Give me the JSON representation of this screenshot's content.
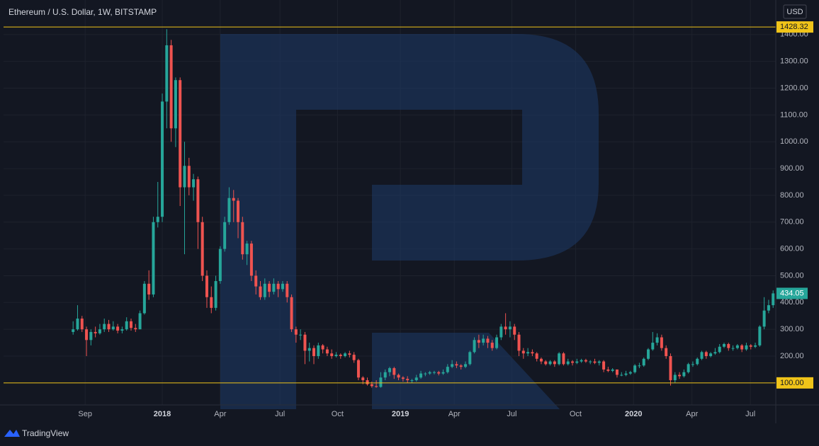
{
  "chart_data": {
    "type": "candlestick",
    "title": "Ethereum / U.S. Dollar, 1W, BITSTAMP",
    "currency": "USD",
    "up_color": "#26a69a",
    "down_color": "#ef5350",
    "open": [
      290,
      300,
      340,
      300,
      260,
      290,
      285,
      300,
      320,
      300,
      310,
      295,
      300,
      330,
      305,
      300,
      360,
      470,
      430,
      700,
      720,
      1150,
      1360,
      1050,
      1230,
      830,
      910,
      830,
      860,
      700,
      500,
      420,
      380,
      480,
      600,
      700,
      790,
      780,
      700,
      580,
      620,
      500,
      460,
      420,
      470,
      440,
      470,
      450,
      470,
      420,
      300,
      280,
      280,
      220,
      230,
      200,
      240,
      225,
      210,
      200,
      205,
      200,
      210,
      205,
      185,
      120,
      110,
      95,
      88,
      85,
      120,
      140,
      155,
      130,
      120,
      115,
      110,
      110,
      120,
      135,
      135,
      140,
      140,
      135,
      140,
      160,
      170,
      165,
      160,
      170,
      215,
      260,
      250,
      265,
      250,
      230,
      270,
      310,
      300,
      310,
      280,
      220,
      210,
      215,
      210,
      190,
      180,
      170,
      180,
      170,
      210,
      170,
      180,
      175,
      180,
      185,
      180,
      180,
      175,
      180,
      150,
      145,
      150,
      130,
      130,
      135,
      140,
      165,
      165,
      190,
      225,
      250,
      270,
      230,
      200,
      110,
      130,
      125,
      140,
      170,
      170,
      190,
      215,
      200,
      210,
      215,
      235,
      245,
      230,
      230,
      240,
      225,
      240,
      235,
      240,
      310,
      370,
      390
    ],
    "high": [
      330,
      390,
      350,
      310,
      300,
      310,
      320,
      340,
      335,
      330,
      320,
      310,
      345,
      340,
      320,
      370,
      480,
      520,
      720,
      850,
      1180,
      1420,
      1380,
      1240,
      1240,
      1000,
      940,
      880,
      870,
      720,
      520,
      460,
      500,
      610,
      720,
      830,
      820,
      790,
      720,
      630,
      630,
      520,
      480,
      490,
      480,
      490,
      480,
      480,
      480,
      430,
      310,
      300,
      290,
      250,
      240,
      250,
      245,
      235,
      225,
      215,
      210,
      215,
      220,
      215,
      190,
      125,
      120,
      105,
      110,
      140,
      150,
      160,
      160,
      135,
      125,
      125,
      115,
      130,
      145,
      140,
      145,
      145,
      145,
      150,
      170,
      185,
      180,
      170,
      180,
      220,
      270,
      280,
      280,
      275,
      260,
      280,
      320,
      360,
      330,
      320,
      290,
      230,
      230,
      225,
      215,
      195,
      185,
      185,
      185,
      215,
      215,
      190,
      185,
      190,
      190,
      190,
      185,
      190,
      185,
      185,
      160,
      155,
      150,
      140,
      145,
      145,
      170,
      175,
      195,
      230,
      290,
      285,
      280,
      240,
      210,
      140,
      140,
      150,
      175,
      180,
      195,
      220,
      220,
      215,
      230,
      245,
      250,
      250,
      240,
      245,
      245,
      250,
      245,
      250,
      315,
      420,
      410,
      445
    ],
    "low": [
      280,
      295,
      290,
      200,
      240,
      270,
      280,
      290,
      290,
      295,
      285,
      285,
      295,
      295,
      290,
      300,
      355,
      410,
      420,
      680,
      700,
      1050,
      1000,
      980,
      760,
      580,
      800,
      780,
      600,
      480,
      380,
      360,
      370,
      470,
      590,
      690,
      700,
      640,
      560,
      540,
      480,
      430,
      410,
      410,
      420,
      430,
      420,
      440,
      400,
      290,
      250,
      260,
      170,
      180,
      170,
      190,
      210,
      200,
      190,
      195,
      190,
      195,
      195,
      175,
      110,
      95,
      90,
      82,
      82,
      82,
      110,
      125,
      115,
      110,
      105,
      100,
      100,
      105,
      115,
      125,
      130,
      132,
      128,
      130,
      135,
      155,
      155,
      150,
      155,
      165,
      210,
      230,
      240,
      230,
      220,
      225,
      260,
      280,
      270,
      260,
      200,
      190,
      200,
      200,
      180,
      170,
      165,
      165,
      160,
      165,
      165,
      165,
      165,
      170,
      175,
      175,
      170,
      170,
      165,
      140,
      140,
      140,
      120,
      125,
      125,
      130,
      135,
      155,
      160,
      185,
      220,
      240,
      220,
      190,
      90,
      100,
      115,
      120,
      135,
      160,
      165,
      185,
      190,
      195,
      205,
      210,
      230,
      220,
      220,
      225,
      215,
      220,
      225,
      230,
      235,
      300,
      360,
      380
    ],
    "close": [
      300,
      340,
      300,
      260,
      290,
      285,
      300,
      320,
      300,
      310,
      295,
      300,
      330,
      305,
      300,
      360,
      470,
      430,
      700,
      720,
      1150,
      1360,
      1050,
      1230,
      830,
      910,
      830,
      860,
      700,
      500,
      420,
      380,
      480,
      600,
      700,
      790,
      780,
      700,
      580,
      620,
      500,
      460,
      420,
      470,
      440,
      470,
      450,
      470,
      420,
      300,
      280,
      280,
      220,
      230,
      200,
      240,
      225,
      210,
      200,
      205,
      200,
      210,
      205,
      185,
      120,
      110,
      95,
      88,
      85,
      120,
      140,
      155,
      130,
      120,
      115,
      110,
      110,
      120,
      135,
      135,
      140,
      140,
      135,
      140,
      160,
      170,
      165,
      160,
      170,
      215,
      260,
      250,
      265,
      250,
      230,
      270,
      310,
      300,
      310,
      280,
      220,
      210,
      215,
      210,
      190,
      180,
      170,
      180,
      170,
      210,
      170,
      180,
      175,
      180,
      185,
      180,
      180,
      175,
      180,
      150,
      145,
      150,
      130,
      130,
      135,
      140,
      165,
      165,
      190,
      225,
      250,
      270,
      230,
      200,
      110,
      130,
      125,
      140,
      170,
      170,
      190,
      215,
      200,
      210,
      215,
      235,
      245,
      230,
      230,
      240,
      225,
      240,
      235,
      240,
      310,
      370,
      390,
      434.05
    ],
    "ylim": [
      23,
      1529
    ],
    "yticks": [
      {
        "value": 100,
        "label": "100.00"
      },
      {
        "value": 200,
        "label": "200.00"
      },
      {
        "value": 300,
        "label": "300.00"
      },
      {
        "value": 400,
        "label": "400.00"
      },
      {
        "value": 500,
        "label": "500.00"
      },
      {
        "value": 600,
        "label": "600.00"
      },
      {
        "value": 700,
        "label": "700.00"
      },
      {
        "value": 800,
        "label": "800.00"
      },
      {
        "value": 900,
        "label": "900.00"
      },
      {
        "value": 1000,
        "label": "1000.00"
      },
      {
        "value": 1100,
        "label": "1100.00"
      },
      {
        "value": 1200,
        "label": "1200.00"
      },
      {
        "value": 1300,
        "label": "1300.00"
      },
      {
        "value": 1400,
        "label": "1400.00"
      }
    ],
    "xlim": [
      -15.6,
      157.6
    ],
    "xticks": [
      {
        "value": 2.7,
        "label": "Sep"
      },
      {
        "value": 20,
        "label": "2018"
      },
      {
        "value": 33,
        "label": "Apr"
      },
      {
        "value": 46.4,
        "label": "Jul"
      },
      {
        "value": 59.3,
        "label": "Oct"
      },
      {
        "value": 73.4,
        "label": "2019"
      },
      {
        "value": 85.5,
        "label": "Apr"
      },
      {
        "value": 98.4,
        "label": "Jul"
      },
      {
        "value": 112.7,
        "label": "Oct"
      },
      {
        "value": 125.7,
        "label": "2020"
      },
      {
        "value": 138.8,
        "label": "Apr"
      },
      {
        "value": 151.9,
        "label": "Jul"
      }
    ],
    "grid": true,
    "levels": [
      {
        "value": 1428.32,
        "label": "1428.32"
      },
      {
        "value": 100,
        "label": "100.00"
      }
    ],
    "level_color": "#f0c419",
    "last_price": 434.05,
    "last_price_color": "#26a69a"
  },
  "brand": "TradingView"
}
